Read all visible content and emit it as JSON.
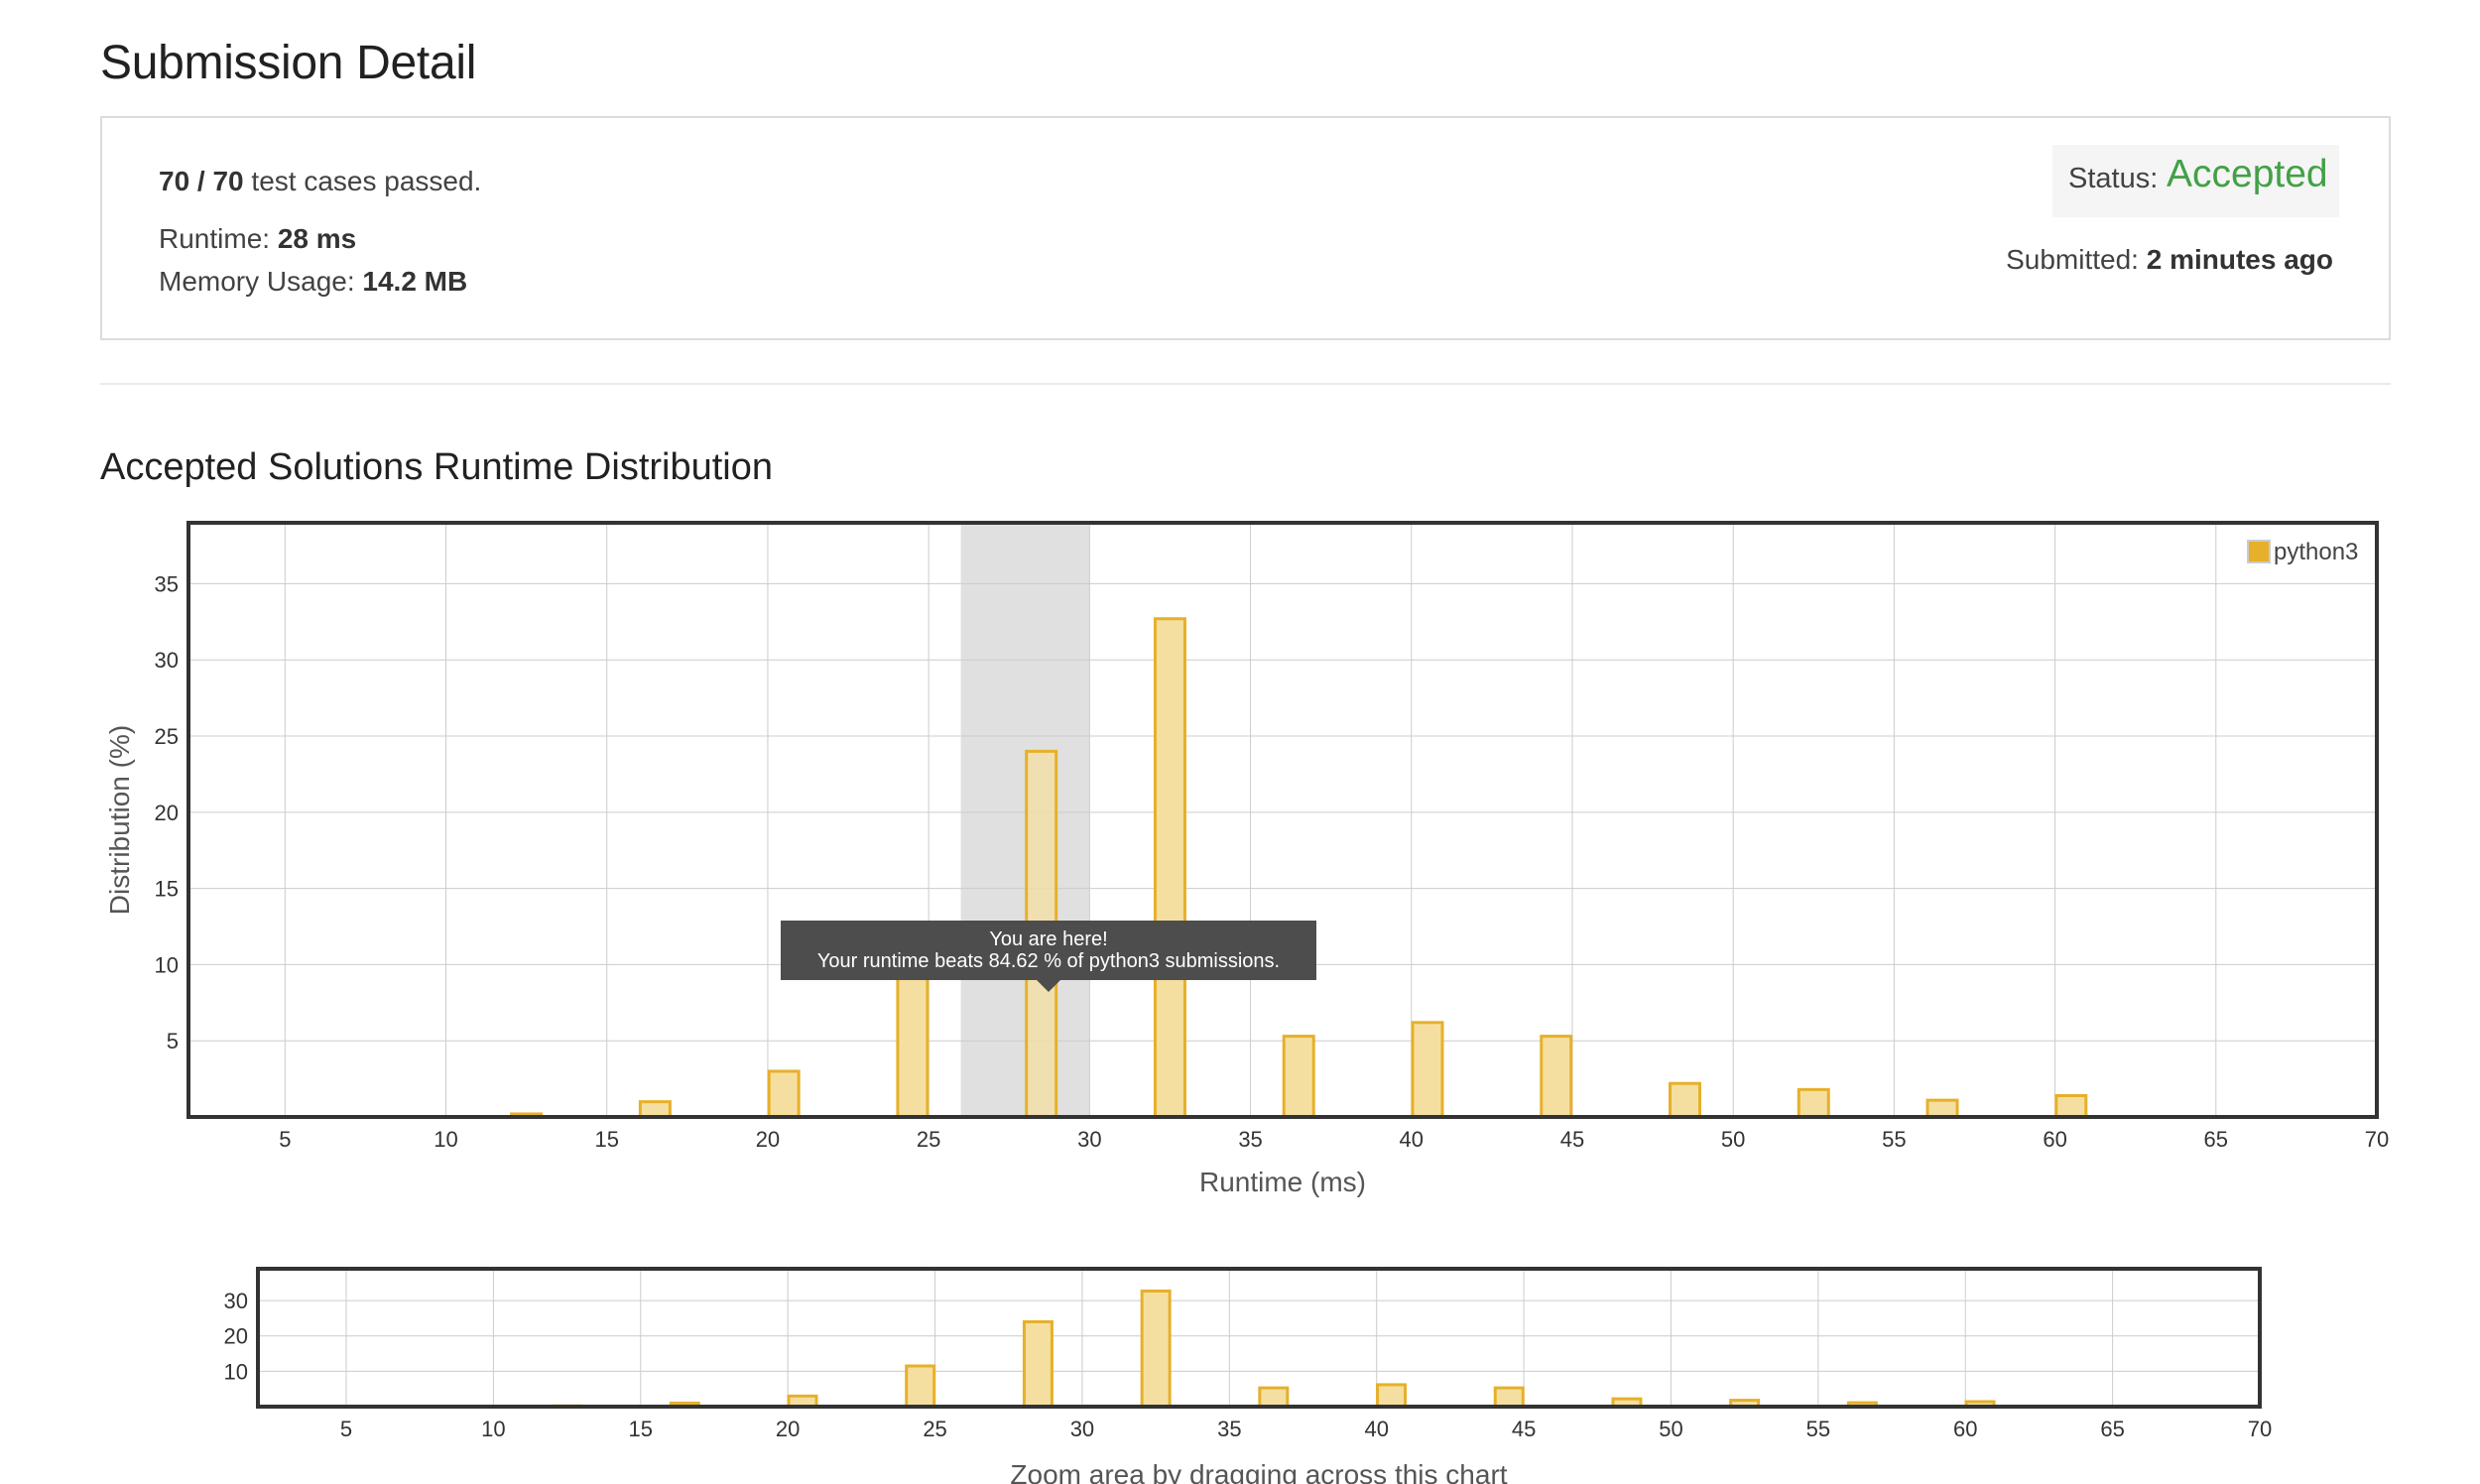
{
  "page": {
    "title": "Submission Detail"
  },
  "result": {
    "passed": "70 / 70",
    "passed_suffix": "test cases passed.",
    "runtime_label": "Runtime:",
    "runtime_value": "28 ms",
    "memory_label": "Memory Usage:",
    "memory_value": "14.2 MB",
    "status_label": "Status:",
    "status_value": "Accepted",
    "submitted_label": "Submitted:",
    "submitted_value": "2 minutes ago"
  },
  "colors": {
    "accepted": "#43a047",
    "bar_fill": "#f5dfa0",
    "bar_stroke": "#e6b02a",
    "highlight_band": "#e0e0e0"
  },
  "distribution": {
    "title": "Accepted Solutions Runtime Distribution",
    "tooltip": {
      "line1": "You are here!",
      "line2": "Your runtime beats 84.62 % of python3 submissions."
    },
    "zoom_hint": "Zoom area by dragging across this chart"
  },
  "chart_data": [
    {
      "type": "bar",
      "xlabel": "Runtime (ms)",
      "ylabel": "Distribution (%)",
      "xlim": [
        2,
        70
      ],
      "ylim": [
        0,
        39
      ],
      "xticks": [
        5,
        10,
        15,
        20,
        25,
        30,
        35,
        40,
        45,
        50,
        55,
        60,
        65,
        70
      ],
      "yticks": [
        5,
        10,
        15,
        20,
        25,
        30,
        35
      ],
      "legend": "top-right",
      "grid": true,
      "highlight_range": [
        26,
        30
      ],
      "series": [
        {
          "name": "python3",
          "x": [
            12.5,
            16.5,
            20.5,
            24.5,
            28.5,
            32.5,
            36.5,
            40.5,
            44.5,
            48.5,
            52.5,
            56.5,
            60.5
          ],
          "values": [
            0.2,
            1.0,
            3.0,
            11.5,
            24.0,
            32.7,
            5.3,
            6.2,
            5.3,
            2.2,
            1.8,
            1.1,
            1.4
          ]
        }
      ]
    },
    {
      "type": "bar",
      "xlim": [
        2,
        70
      ],
      "ylim": [
        0,
        39
      ],
      "xticks": [
        5,
        10,
        15,
        20,
        25,
        30,
        35,
        40,
        45,
        50,
        55,
        60,
        65,
        70
      ],
      "yticks": [
        10,
        20,
        30
      ],
      "grid": true,
      "series": [
        {
          "x": [
            12.5,
            16.5,
            20.5,
            24.5,
            28.5,
            32.5,
            36.5,
            40.5,
            44.5,
            48.5,
            52.5,
            56.5,
            60.5
          ],
          "values": [
            0.2,
            1.0,
            3.0,
            11.5,
            24.0,
            32.7,
            5.3,
            6.2,
            5.3,
            2.2,
            1.8,
            1.1,
            1.4
          ]
        }
      ]
    }
  ]
}
